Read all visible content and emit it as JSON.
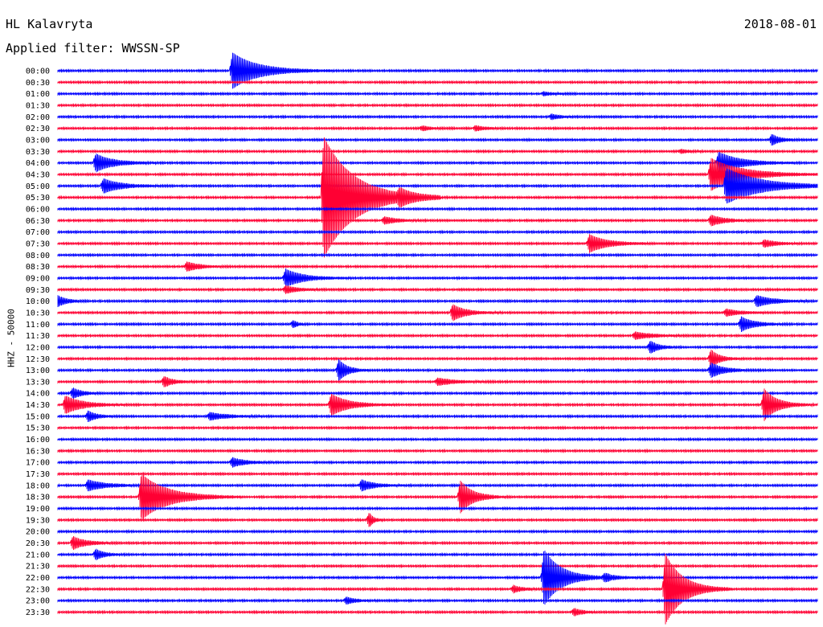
{
  "header": {
    "station": "HL Kalavryta",
    "filter": "Applied filter: WWSSN-SP",
    "date": "2018-08-01"
  },
  "chart_data": {
    "type": "line",
    "title": "HL Kalavryta",
    "subtitle": "Applied filter: WWSSN-SP",
    "ylabel": "HHZ - 50000",
    "xlabel": "",
    "grid": false,
    "legend": "none",
    "colors": [
      "#0000ff",
      "#ff0033"
    ],
    "rows": [
      "00:00",
      "00:30",
      "01:00",
      "01:30",
      "02:00",
      "02:30",
      "03:00",
      "03:30",
      "04:00",
      "04:30",
      "05:00",
      "05:30",
      "06:00",
      "06:30",
      "07:00",
      "07:30",
      "08:00",
      "08:30",
      "09:00",
      "09:30",
      "10:00",
      "10:30",
      "11:00",
      "11:30",
      "12:00",
      "12:30",
      "13:00",
      "13:30",
      "14:00",
      "14:30",
      "15:00",
      "15:30",
      "16:00",
      "16:30",
      "17:00",
      "17:30",
      "18:00",
      "18:30",
      "19:00",
      "19:30",
      "20:00",
      "20:30",
      "21:00",
      "21:30",
      "22:00",
      "22:30",
      "23:00",
      "23:30"
    ],
    "events": [
      {
        "row": 0,
        "x": 0.23,
        "amp": 1.0,
        "dur": 0.06
      },
      {
        "row": 2,
        "x": 0.64,
        "amp": 0.1,
        "dur": 0.02
      },
      {
        "row": 4,
        "x": 0.65,
        "amp": 0.15,
        "dur": 0.02
      },
      {
        "row": 5,
        "x": 0.48,
        "amp": 0.12,
        "dur": 0.02
      },
      {
        "row": 5,
        "x": 0.55,
        "amp": 0.15,
        "dur": 0.02
      },
      {
        "row": 6,
        "x": 0.94,
        "amp": 0.3,
        "dur": 0.02
      },
      {
        "row": 7,
        "x": 0.82,
        "amp": 0.1,
        "dur": 0.02
      },
      {
        "row": 8,
        "x": 0.05,
        "amp": 0.5,
        "dur": 0.04
      },
      {
        "row": 8,
        "x": 0.87,
        "amp": 0.6,
        "dur": 0.05
      },
      {
        "row": 9,
        "x": 0.86,
        "amp": 0.9,
        "dur": 0.07
      },
      {
        "row": 10,
        "x": 0.06,
        "amp": 0.4,
        "dur": 0.04
      },
      {
        "row": 10,
        "x": 0.88,
        "amp": 1.0,
        "dur": 0.08
      },
      {
        "row": 11,
        "x": 0.35,
        "amp": 3.5,
        "dur": 0.07
      },
      {
        "row": 11,
        "x": 0.45,
        "amp": 0.3,
        "dur": 0.03
      },
      {
        "row": 13,
        "x": 0.43,
        "amp": 0.2,
        "dur": 0.03
      },
      {
        "row": 13,
        "x": 0.86,
        "amp": 0.3,
        "dur": 0.03
      },
      {
        "row": 15,
        "x": 0.7,
        "amp": 0.5,
        "dur": 0.04
      },
      {
        "row": 15,
        "x": 0.93,
        "amp": 0.2,
        "dur": 0.03
      },
      {
        "row": 17,
        "x": 0.17,
        "amp": 0.25,
        "dur": 0.03
      },
      {
        "row": 18,
        "x": 0.3,
        "amp": 0.5,
        "dur": 0.04
      },
      {
        "row": 19,
        "x": 0.3,
        "amp": 0.2,
        "dur": 0.03
      },
      {
        "row": 20,
        "x": 0.0,
        "amp": 0.3,
        "dur": 0.02
      },
      {
        "row": 20,
        "x": 0.92,
        "amp": 0.3,
        "dur": 0.04
      },
      {
        "row": 21,
        "x": 0.52,
        "amp": 0.45,
        "dur": 0.03
      },
      {
        "row": 21,
        "x": 0.88,
        "amp": 0.2,
        "dur": 0.03
      },
      {
        "row": 22,
        "x": 0.31,
        "amp": 0.2,
        "dur": 0.01
      },
      {
        "row": 22,
        "x": 0.9,
        "amp": 0.4,
        "dur": 0.03
      },
      {
        "row": 23,
        "x": 0.76,
        "amp": 0.2,
        "dur": 0.04
      },
      {
        "row": 24,
        "x": 0.78,
        "amp": 0.35,
        "dur": 0.02
      },
      {
        "row": 25,
        "x": 0.86,
        "amp": 0.5,
        "dur": 0.02
      },
      {
        "row": 26,
        "x": 0.37,
        "amp": 0.6,
        "dur": 0.02
      },
      {
        "row": 26,
        "x": 0.86,
        "amp": 0.4,
        "dur": 0.03
      },
      {
        "row": 27,
        "x": 0.14,
        "amp": 0.3,
        "dur": 0.02
      },
      {
        "row": 27,
        "x": 0.5,
        "amp": 0.2,
        "dur": 0.04
      },
      {
        "row": 28,
        "x": 0.02,
        "amp": 0.3,
        "dur": 0.02
      },
      {
        "row": 29,
        "x": 0.01,
        "amp": 0.5,
        "dur": 0.04
      },
      {
        "row": 29,
        "x": 0.36,
        "amp": 0.6,
        "dur": 0.04
      },
      {
        "row": 29,
        "x": 0.93,
        "amp": 0.9,
        "dur": 0.03
      },
      {
        "row": 30,
        "x": 0.04,
        "amp": 0.3,
        "dur": 0.02
      },
      {
        "row": 30,
        "x": 0.2,
        "amp": 0.2,
        "dur": 0.04
      },
      {
        "row": 34,
        "x": 0.23,
        "amp": 0.25,
        "dur": 0.03
      },
      {
        "row": 36,
        "x": 0.04,
        "amp": 0.3,
        "dur": 0.04
      },
      {
        "row": 36,
        "x": 0.4,
        "amp": 0.3,
        "dur": 0.03
      },
      {
        "row": 37,
        "x": 0.11,
        "amp": 1.3,
        "dur": 0.06
      },
      {
        "row": 37,
        "x": 0.53,
        "amp": 0.9,
        "dur": 0.03
      },
      {
        "row": 39,
        "x": 0.41,
        "amp": 0.4,
        "dur": 0.01
      },
      {
        "row": 41,
        "x": 0.02,
        "amp": 0.35,
        "dur": 0.03
      },
      {
        "row": 42,
        "x": 0.05,
        "amp": 0.3,
        "dur": 0.02
      },
      {
        "row": 44,
        "x": 0.64,
        "amp": 1.6,
        "dur": 0.04
      },
      {
        "row": 44,
        "x": 0.72,
        "amp": 0.2,
        "dur": 0.03
      },
      {
        "row": 45,
        "x": 0.6,
        "amp": 0.2,
        "dur": 0.02
      },
      {
        "row": 45,
        "x": 0.8,
        "amp": 2.0,
        "dur": 0.04
      },
      {
        "row": 46,
        "x": 0.38,
        "amp": 0.2,
        "dur": 0.02
      },
      {
        "row": 47,
        "x": 0.68,
        "amp": 0.2,
        "dur": 0.02
      }
    ]
  }
}
